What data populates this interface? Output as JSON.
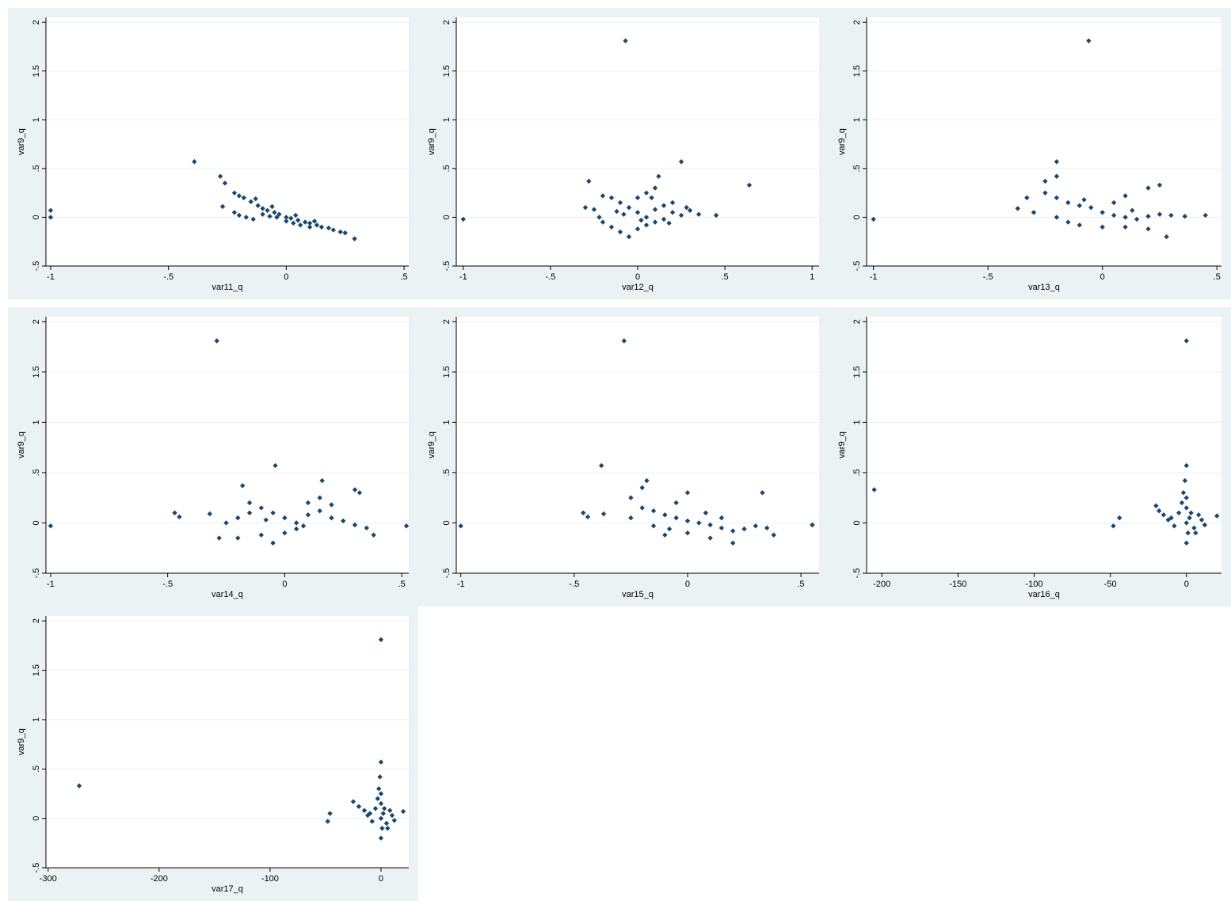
{
  "colors": {
    "marker": "#1a476f",
    "panel_bg": "#eaf2f3",
    "plot_bg": "#ffffff",
    "grid": "#eaf2f3"
  },
  "chart_data": [
    {
      "type": "scatter",
      "title": "",
      "xlabel": "var11_q",
      "ylabel": "var9_q",
      "xlim": [
        -1.02,
        0.52
      ],
      "ylim": [
        -0.5,
        2.05
      ],
      "xticks": [
        -1,
        -0.5,
        0,
        0.5
      ],
      "xtick_labels": [
        "-1",
        "-.5",
        "0",
        ".5"
      ],
      "yticks": [
        -0.5,
        0,
        0.5,
        1,
        1.5,
        2
      ],
      "ytick_labels": [
        "-.5",
        "0",
        ".5",
        "1",
        "1.5",
        "2"
      ],
      "grid": true,
      "marker": "diamond",
      "points": [
        [
          -1.0,
          0.07
        ],
        [
          -1.0,
          0.0
        ],
        [
          -0.39,
          0.57
        ],
        [
          -0.28,
          0.42
        ],
        [
          -0.26,
          0.35
        ],
        [
          -0.27,
          0.11
        ],
        [
          -0.22,
          0.25
        ],
        [
          -0.2,
          0.22
        ],
        [
          -0.18,
          0.2
        ],
        [
          -0.15,
          0.16
        ],
        [
          -0.12,
          0.12
        ],
        [
          -0.1,
          0.09
        ],
        [
          -0.08,
          0.07
        ],
        [
          -0.05,
          0.05
        ],
        [
          -0.03,
          0.03
        ],
        [
          0.0,
          0.0
        ],
        [
          0.02,
          -0.01
        ],
        [
          0.05,
          -0.03
        ],
        [
          0.08,
          -0.05
        ],
        [
          0.1,
          -0.06
        ],
        [
          0.13,
          -0.08
        ],
        [
          0.15,
          -0.1
        ],
        [
          0.18,
          -0.11
        ],
        [
          0.2,
          -0.13
        ],
        [
          0.23,
          -0.15
        ],
        [
          0.25,
          -0.16
        ],
        [
          0.29,
          -0.22
        ],
        [
          -0.22,
          0.05
        ],
        [
          -0.2,
          0.02
        ],
        [
          -0.17,
          0.0
        ],
        [
          -0.14,
          -0.02
        ],
        [
          -0.1,
          0.03
        ],
        [
          -0.07,
          0.01
        ],
        [
          -0.04,
          0.0
        ],
        [
          0.0,
          -0.04
        ],
        [
          0.03,
          -0.06
        ],
        [
          0.06,
          -0.08
        ],
        [
          0.1,
          -0.1
        ],
        [
          -0.13,
          0.19
        ],
        [
          -0.06,
          0.11
        ],
        [
          0.04,
          0.02
        ],
        [
          0.12,
          -0.04
        ]
      ]
    },
    {
      "type": "scatter",
      "title": "",
      "xlabel": "var12_q",
      "ylabel": "var9_q",
      "xlim": [
        -1.04,
        1.04
      ],
      "ylim": [
        -0.5,
        2.05
      ],
      "xticks": [
        -1,
        -0.5,
        0,
        0.5,
        1
      ],
      "xtick_labels": [
        "-1",
        "-.5",
        "0",
        ".5",
        "1"
      ],
      "yticks": [
        -0.5,
        0,
        0.5,
        1,
        1.5,
        2
      ],
      "ytick_labels": [
        "-.5",
        "0",
        ".5",
        "1",
        "1.5",
        "2"
      ],
      "grid": true,
      "marker": "diamond",
      "points": [
        [
          -1.0,
          -0.02
        ],
        [
          -0.07,
          1.81
        ],
        [
          0.25,
          0.57
        ],
        [
          0.64,
          0.33
        ],
        [
          -0.28,
          0.37
        ],
        [
          -0.2,
          0.22
        ],
        [
          -0.3,
          0.1
        ],
        [
          -0.25,
          0.08
        ],
        [
          -0.15,
          0.2
        ],
        [
          -0.1,
          0.15
        ],
        [
          -0.05,
          0.1
        ],
        [
          0.0,
          0.05
        ],
        [
          0.05,
          0.0
        ],
        [
          0.1,
          0.08
        ],
        [
          0.15,
          0.12
        ],
        [
          0.2,
          0.05
        ],
        [
          0.25,
          0.02
        ],
        [
          0.3,
          0.07
        ],
        [
          0.35,
          0.03
        ],
        [
          0.45,
          0.02
        ],
        [
          -0.2,
          -0.05
        ],
        [
          -0.15,
          -0.1
        ],
        [
          -0.1,
          -0.15
        ],
        [
          -0.05,
          -0.2
        ],
        [
          0.0,
          -0.12
        ],
        [
          0.05,
          -0.08
        ],
        [
          0.1,
          -0.05
        ],
        [
          0.15,
          -0.02
        ],
        [
          0.2,
          0.15
        ],
        [
          0.1,
          0.3
        ],
        [
          0.12,
          0.42
        ],
        [
          0.05,
          0.25
        ],
        [
          -0.08,
          0.03
        ],
        [
          0.02,
          -0.03
        ],
        [
          0.08,
          0.2
        ],
        [
          -0.12,
          0.06
        ],
        [
          0.18,
          -0.06
        ],
        [
          0.28,
          0.1
        ],
        [
          -0.22,
          0.0
        ],
        [
          0.0,
          0.2
        ]
      ]
    },
    {
      "type": "scatter",
      "title": "",
      "xlabel": "var13_q",
      "ylabel": "var9_q",
      "xlim": [
        -1.03,
        0.52
      ],
      "ylim": [
        -0.5,
        2.05
      ],
      "xticks": [
        -1,
        -0.5,
        0,
        0.5
      ],
      "xtick_labels": [
        "-1",
        "-.5",
        "0",
        ".5"
      ],
      "yticks": [
        -0.5,
        0,
        0.5,
        1,
        1.5,
        2
      ],
      "ytick_labels": [
        "-.5",
        "0",
        ".5",
        "1",
        "1.5",
        "2"
      ],
      "grid": true,
      "marker": "diamond",
      "points": [
        [
          -1.0,
          -0.02
        ],
        [
          -0.06,
          1.81
        ],
        [
          -0.2,
          0.57
        ],
        [
          -0.2,
          0.42
        ],
        [
          -0.25,
          0.37
        ],
        [
          -0.33,
          0.2
        ],
        [
          -0.37,
          0.09
        ],
        [
          -0.25,
          0.25
        ],
        [
          -0.2,
          0.2
        ],
        [
          -0.15,
          0.15
        ],
        [
          -0.1,
          0.12
        ],
        [
          -0.05,
          0.1
        ],
        [
          0.0,
          0.05
        ],
        [
          0.05,
          0.02
        ],
        [
          0.1,
          0.0
        ],
        [
          0.15,
          -0.02
        ],
        [
          0.2,
          0.01
        ],
        [
          0.25,
          0.03
        ],
        [
          0.3,
          0.02
        ],
        [
          0.36,
          0.01
        ],
        [
          0.45,
          0.02
        ],
        [
          -0.15,
          -0.05
        ],
        [
          -0.1,
          -0.08
        ],
        [
          0.0,
          -0.1
        ],
        [
          0.1,
          -0.1
        ],
        [
          0.2,
          -0.12
        ],
        [
          0.28,
          -0.2
        ],
        [
          0.25,
          0.33
        ],
        [
          0.2,
          0.3
        ],
        [
          0.1,
          0.22
        ],
        [
          -0.2,
          0.0
        ],
        [
          -0.3,
          0.05
        ],
        [
          0.05,
          0.15
        ],
        [
          -0.08,
          0.18
        ],
        [
          0.13,
          0.07
        ]
      ]
    },
    {
      "type": "scatter",
      "title": "",
      "xlabel": "var14_q",
      "ylabel": "var9_q",
      "xlim": [
        -1.02,
        0.53
      ],
      "ylim": [
        -0.5,
        2.05
      ],
      "xticks": [
        -1,
        -0.5,
        0,
        0.5
      ],
      "xtick_labels": [
        "-1",
        "-.5",
        "0",
        ".5"
      ],
      "yticks": [
        -0.5,
        0,
        0.5,
        1,
        1.5,
        2
      ],
      "ytick_labels": [
        "-.5",
        "0",
        ".5",
        "1",
        "1.5",
        "2"
      ],
      "grid": true,
      "marker": "diamond",
      "points": [
        [
          -1.0,
          -0.03
        ],
        [
          -0.29,
          1.81
        ],
        [
          -0.04,
          0.57
        ],
        [
          -0.47,
          0.1
        ],
        [
          -0.45,
          0.06
        ],
        [
          -0.32,
          0.09
        ],
        [
          -0.18,
          0.37
        ],
        [
          0.16,
          0.42
        ],
        [
          0.32,
          0.3
        ],
        [
          0.3,
          0.33
        ],
        [
          -0.28,
          -0.15
        ],
        [
          -0.25,
          0.0
        ],
        [
          -0.2,
          0.05
        ],
        [
          -0.15,
          0.1
        ],
        [
          -0.1,
          0.15
        ],
        [
          -0.05,
          0.1
        ],
        [
          0.0,
          0.05
        ],
        [
          0.05,
          0.0
        ],
        [
          0.1,
          0.08
        ],
        [
          0.15,
          0.12
        ],
        [
          0.2,
          0.05
        ],
        [
          0.25,
          0.02
        ],
        [
          0.3,
          -0.02
        ],
        [
          0.35,
          -0.05
        ],
        [
          0.38,
          -0.12
        ],
        [
          0.52,
          -0.03
        ],
        [
          -0.2,
          -0.15
        ],
        [
          -0.1,
          -0.12
        ],
        [
          -0.05,
          -0.2
        ],
        [
          0.0,
          -0.1
        ],
        [
          0.05,
          -0.06
        ],
        [
          0.1,
          0.2
        ],
        [
          0.15,
          0.25
        ],
        [
          -0.15,
          0.2
        ],
        [
          0.08,
          -0.03
        ],
        [
          0.2,
          0.18
        ],
        [
          -0.08,
          0.03
        ]
      ]
    },
    {
      "type": "scatter",
      "title": "",
      "xlabel": "var15_q",
      "ylabel": "var9_q",
      "xlim": [
        -1.02,
        0.58
      ],
      "ylim": [
        -0.5,
        2.05
      ],
      "xticks": [
        -1,
        -0.5,
        0,
        0.5
      ],
      "xtick_labels": [
        "-1",
        "-.5",
        "0",
        ".5"
      ],
      "yticks": [
        -0.5,
        0,
        0.5,
        1,
        1.5,
        2
      ],
      "ytick_labels": [
        "-.5",
        "0",
        ".5",
        "1",
        "1.5",
        "2"
      ],
      "grid": true,
      "marker": "diamond",
      "points": [
        [
          -1.0,
          -0.03
        ],
        [
          -0.28,
          1.81
        ],
        [
          -0.38,
          0.57
        ],
        [
          -0.46,
          0.1
        ],
        [
          -0.44,
          0.06
        ],
        [
          -0.37,
          0.09
        ],
        [
          -0.25,
          0.25
        ],
        [
          -0.2,
          0.35
        ],
        [
          -0.18,
          0.42
        ],
        [
          -0.25,
          0.05
        ],
        [
          -0.2,
          0.15
        ],
        [
          -0.15,
          0.12
        ],
        [
          -0.1,
          0.08
        ],
        [
          -0.05,
          0.05
        ],
        [
          0.0,
          0.02
        ],
        [
          0.05,
          0.0
        ],
        [
          0.1,
          -0.02
        ],
        [
          0.15,
          -0.05
        ],
        [
          0.2,
          -0.08
        ],
        [
          0.25,
          -0.06
        ],
        [
          0.3,
          -0.03
        ],
        [
          0.35,
          -0.05
        ],
        [
          0.38,
          -0.12
        ],
        [
          0.55,
          -0.02
        ],
        [
          0.33,
          0.3
        ],
        [
          -0.1,
          -0.12
        ],
        [
          0.0,
          -0.1
        ],
        [
          0.1,
          -0.15
        ],
        [
          0.2,
          -0.2
        ],
        [
          -0.05,
          0.2
        ],
        [
          0.0,
          0.3
        ],
        [
          -0.15,
          -0.03
        ],
        [
          0.08,
          0.1
        ],
        [
          -0.08,
          -0.06
        ],
        [
          0.15,
          0.05
        ]
      ]
    },
    {
      "type": "scatter",
      "title": "",
      "xlabel": "var16_q",
      "ylabel": "var9_q",
      "xlim": [
        -210,
        23
      ],
      "ylim": [
        -0.5,
        2.05
      ],
      "xticks": [
        -200,
        -150,
        -100,
        -50,
        0
      ],
      "xtick_labels": [
        "-200",
        "-150",
        "-100",
        "-50",
        "0"
      ],
      "yticks": [
        -0.5,
        0,
        0.5,
        1,
        1.5,
        2
      ],
      "ytick_labels": [
        "-.5",
        "0",
        ".5",
        "1",
        "1.5",
        "2"
      ],
      "grid": true,
      "marker": "diamond",
      "points": [
        [
          -205,
          0.33
        ],
        [
          0,
          1.81
        ],
        [
          0,
          0.57
        ],
        [
          -48,
          -0.03
        ],
        [
          -44,
          0.05
        ],
        [
          -20,
          0.17
        ],
        [
          -18,
          0.12
        ],
        [
          -15,
          0.08
        ],
        [
          -10,
          0.05
        ],
        [
          -8,
          -0.03
        ],
        [
          -5,
          0.1
        ],
        [
          -3,
          0.2
        ],
        [
          -2,
          0.3
        ],
        [
          -1,
          0.42
        ],
        [
          0,
          0.0
        ],
        [
          0,
          -0.2
        ],
        [
          0,
          0.15
        ],
        [
          0,
          0.25
        ],
        [
          1,
          -0.1
        ],
        [
          2,
          0.05
        ],
        [
          3,
          0.1
        ],
        [
          5,
          -0.05
        ],
        [
          8,
          0.08
        ],
        [
          10,
          0.03
        ],
        [
          12,
          -0.02
        ],
        [
          20,
          0.07
        ],
        [
          -12,
          0.03
        ],
        [
          6,
          -0.1
        ]
      ]
    },
    {
      "type": "scatter",
      "title": "",
      "xlabel": "var17_q",
      "ylabel": "var9_q",
      "xlim": [
        -302,
        25
      ],
      "ylim": [
        -0.5,
        2.05
      ],
      "xticks": [
        -300,
        -200,
        -100,
        0
      ],
      "xtick_labels": [
        "-300",
        "-200",
        "-100",
        "0"
      ],
      "yticks": [
        -0.5,
        0,
        0.5,
        1,
        1.5,
        2
      ],
      "ytick_labels": [
        "-.5",
        "0",
        ".5",
        "1",
        "1.5",
        "2"
      ],
      "grid": true,
      "marker": "diamond",
      "points": [
        [
          -272,
          0.33
        ],
        [
          0,
          1.81
        ],
        [
          0,
          0.57
        ],
        [
          -48,
          -0.03
        ],
        [
          -46,
          0.05
        ],
        [
          -25,
          0.17
        ],
        [
          -20,
          0.12
        ],
        [
          -15,
          0.08
        ],
        [
          -10,
          0.05
        ],
        [
          -8,
          -0.03
        ],
        [
          -5,
          0.1
        ],
        [
          -3,
          0.2
        ],
        [
          -2,
          0.3
        ],
        [
          -1,
          0.42
        ],
        [
          0,
          0.0
        ],
        [
          0,
          -0.2
        ],
        [
          0,
          0.15
        ],
        [
          0,
          0.25
        ],
        [
          1,
          -0.1
        ],
        [
          2,
          0.05
        ],
        [
          3,
          0.1
        ],
        [
          5,
          -0.05
        ],
        [
          8,
          0.08
        ],
        [
          10,
          0.03
        ],
        [
          12,
          -0.02
        ],
        [
          20,
          0.07
        ],
        [
          -12,
          0.03
        ],
        [
          6,
          -0.1
        ]
      ]
    }
  ]
}
